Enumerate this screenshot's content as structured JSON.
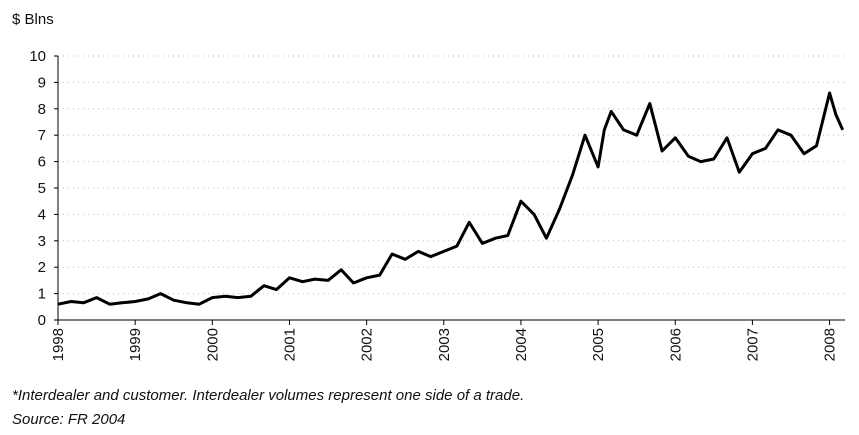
{
  "chart_data": {
    "type": "line",
    "y_label": "$ Blns",
    "notes": [
      "*Interdealer and customer. Interdealer volumes represent one side of a trade.",
      "Source: FR 2004"
    ],
    "x": [
      1998.0,
      1998.17,
      1998.33,
      1998.5,
      1998.67,
      1998.83,
      1999.0,
      1999.17,
      1999.33,
      1999.5,
      1999.67,
      1999.83,
      2000.0,
      2000.17,
      2000.33,
      2000.5,
      2000.67,
      2000.83,
      2001.0,
      2001.17,
      2001.33,
      2001.5,
      2001.67,
      2001.83,
      2002.0,
      2002.17,
      2002.33,
      2002.5,
      2002.67,
      2002.83,
      2003.0,
      2003.17,
      2003.33,
      2003.5,
      2003.67,
      2003.83,
      2004.0,
      2004.17,
      2004.33,
      2004.5,
      2004.67,
      2004.83,
      2005.0,
      2005.08,
      2005.17,
      2005.33,
      2005.5,
      2005.67,
      2005.83,
      2006.0,
      2006.17,
      2006.33,
      2006.5,
      2006.67,
      2006.83,
      2007.0,
      2007.17,
      2007.33,
      2007.5,
      2007.67,
      2007.83,
      2008.0,
      2008.08,
      2008.17
    ],
    "values": [
      0.6,
      0.7,
      0.65,
      0.85,
      0.6,
      0.65,
      0.7,
      0.8,
      1.0,
      0.75,
      0.65,
      0.6,
      0.85,
      0.9,
      0.85,
      0.9,
      1.3,
      1.15,
      1.6,
      1.45,
      1.55,
      1.5,
      1.9,
      1.4,
      1.6,
      1.7,
      2.5,
      2.3,
      2.6,
      2.4,
      2.6,
      2.8,
      3.7,
      2.9,
      3.1,
      3.2,
      4.5,
      4.0,
      3.1,
      4.2,
      5.5,
      7.0,
      5.8,
      7.2,
      7.9,
      7.2,
      7.0,
      8.2,
      6.4,
      6.9,
      6.2,
      6.0,
      6.1,
      6.9,
      5.6,
      6.3,
      6.5,
      7.2,
      7.0,
      6.3,
      6.6,
      8.6,
      7.8,
      7.2
    ],
    "color": "#000000",
    "xlim": [
      1998,
      2008.2
    ],
    "xticks": [
      1998,
      1999,
      2000,
      2001,
      2002,
      2003,
      2004,
      2005,
      2006,
      2007,
      2008
    ],
    "ylim": [
      0,
      10
    ],
    "yticks": [
      0,
      1,
      2,
      3,
      4,
      5,
      6,
      7,
      8,
      9,
      10
    ],
    "grid": true
  }
}
